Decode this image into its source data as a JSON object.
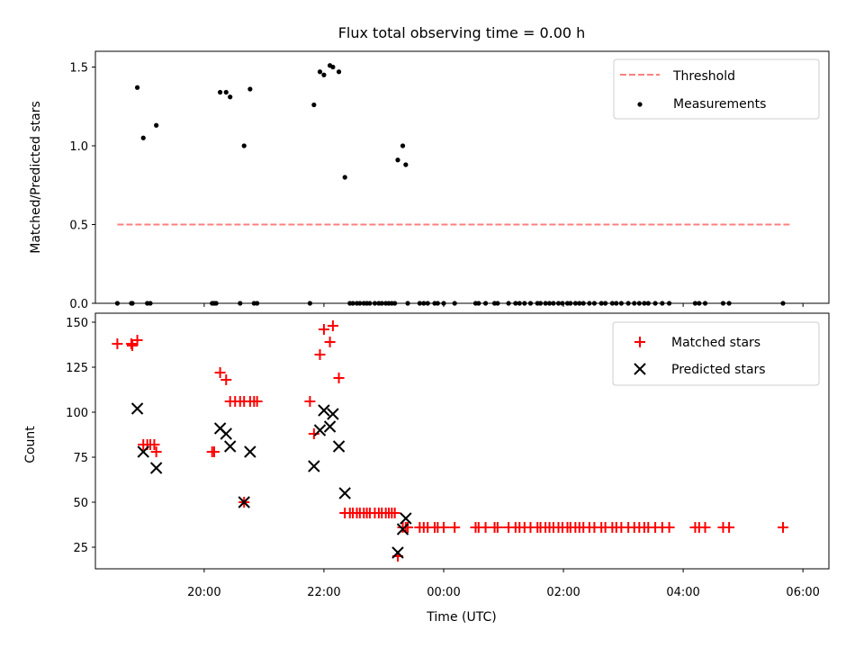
{
  "title": "Flux total observing time = 0.00 h",
  "xlabel": "Time (UTC)",
  "x_ticks": [
    "20:00",
    "22:00",
    "00:00",
    "02:00",
    "04:00",
    "06:00"
  ],
  "colors": {
    "threshold": "#ff7f7f",
    "measurement": "#000000",
    "matched": "#ff0000",
    "predicted": "#000000"
  },
  "chart_data": [
    {
      "type": "scatter",
      "ylabel": "Matched/Predicted stars",
      "xlim": [
        "18:11",
        "06:26"
      ],
      "ylim": [
        0,
        1.6
      ],
      "y_ticks": [
        "0.0",
        "0.5",
        "1.0",
        "1.5"
      ],
      "legend": {
        "placement": "upper right",
        "entries": [
          "Threshold",
          "Measurements"
        ]
      },
      "threshold": {
        "name": "Threshold",
        "y": 0.5,
        "x_range": [
          "18:33",
          "05:48"
        ]
      },
      "measurements": {
        "name": "Measurements",
        "points": [
          [
            "18:33",
            0
          ],
          [
            "18:47",
            0
          ],
          [
            "18:48",
            0
          ],
          [
            "18:53",
            1.37
          ],
          [
            "18:59",
            1.05
          ],
          [
            "19:03",
            0
          ],
          [
            "19:06",
            0
          ],
          [
            "19:12",
            1.13
          ],
          [
            "20:08",
            0
          ],
          [
            "20:10",
            0
          ],
          [
            "20:12",
            0
          ],
          [
            "20:16",
            1.34
          ],
          [
            "20:22",
            1.34
          ],
          [
            "20:26",
            1.31
          ],
          [
            "20:36",
            0
          ],
          [
            "20:40",
            1.0
          ],
          [
            "20:46",
            1.36
          ],
          [
            "20:50",
            0
          ],
          [
            "20:53",
            0
          ],
          [
            "21:46",
            0
          ],
          [
            "21:50",
            1.26
          ],
          [
            "21:56",
            1.47
          ],
          [
            "22:00",
            1.45
          ],
          [
            "22:06",
            1.51
          ],
          [
            "22:09",
            1.5
          ],
          [
            "22:15",
            1.47
          ],
          [
            "22:21",
            0.8
          ],
          [
            "22:26",
            0
          ],
          [
            "22:29",
            0
          ],
          [
            "22:33",
            0
          ],
          [
            "22:36",
            0
          ],
          [
            "22:40",
            0
          ],
          [
            "22:43",
            0
          ],
          [
            "22:46",
            0
          ],
          [
            "22:51",
            0
          ],
          [
            "22:55",
            0
          ],
          [
            "22:58",
            0
          ],
          [
            "23:02",
            0
          ],
          [
            "23:05",
            0
          ],
          [
            "23:08",
            0
          ],
          [
            "23:11",
            0
          ],
          [
            "23:14",
            0.91
          ],
          [
            "23:19",
            1.0
          ],
          [
            "23:22",
            0.88
          ],
          [
            "23:24",
            0
          ],
          [
            "23:36",
            0
          ],
          [
            "23:40",
            0
          ],
          [
            "23:44",
            0
          ],
          [
            "23:51",
            0
          ],
          [
            "23:54",
            0
          ],
          [
            "24:00",
            0
          ],
          [
            "24:11",
            0
          ],
          [
            "24:32",
            0
          ],
          [
            "24:35",
            0
          ],
          [
            "24:42",
            0
          ],
          [
            "24:51",
            0
          ],
          [
            "24:54",
            0
          ],
          [
            "25:05",
            0
          ],
          [
            "25:12",
            0
          ],
          [
            "25:16",
            0
          ],
          [
            "25:21",
            0
          ],
          [
            "25:27",
            0
          ],
          [
            "25:34",
            0
          ],
          [
            "25:37",
            0
          ],
          [
            "25:42",
            0
          ],
          [
            "25:46",
            0
          ],
          [
            "25:50",
            0
          ],
          [
            "25:55",
            0
          ],
          [
            "25:59",
            0
          ],
          [
            "26:04",
            0
          ],
          [
            "26:07",
            0
          ],
          [
            "26:12",
            0
          ],
          [
            "26:16",
            0
          ],
          [
            "26:20",
            0
          ],
          [
            "26:26",
            0
          ],
          [
            "26:31",
            0
          ],
          [
            "26:38",
            0
          ],
          [
            "26:42",
            0
          ],
          [
            "26:49",
            0
          ],
          [
            "26:53",
            0
          ],
          [
            "26:58",
            0
          ],
          [
            "27:05",
            0
          ],
          [
            "27:11",
            0
          ],
          [
            "27:16",
            0
          ],
          [
            "27:21",
            0
          ],
          [
            "27:25",
            0
          ],
          [
            "27:32",
            0
          ],
          [
            "27:39",
            0
          ],
          [
            "27:46",
            0
          ],
          [
            "28:12",
            0
          ],
          [
            "28:16",
            0
          ],
          [
            "28:22",
            0
          ],
          [
            "28:40",
            0
          ],
          [
            "28:46",
            0
          ],
          [
            "29:40",
            0
          ]
        ]
      }
    },
    {
      "type": "scatter",
      "ylabel": "Count",
      "xlim": [
        "18:11",
        "06:26"
      ],
      "ylim": [
        13,
        155
      ],
      "y_ticks": [
        "25",
        "50",
        "75",
        "100",
        "125",
        "150"
      ],
      "legend": {
        "placement": "upper right",
        "entries": [
          "Matched stars",
          "Predicted stars"
        ]
      },
      "matched": {
        "name": "Matched stars",
        "points": [
          [
            "18:33",
            138
          ],
          [
            "18:47",
            138
          ],
          [
            "18:48",
            137
          ],
          [
            "18:53",
            140
          ],
          [
            "18:59",
            82
          ],
          [
            "19:03",
            82
          ],
          [
            "19:06",
            82
          ],
          [
            "19:10",
            82
          ],
          [
            "19:12",
            78
          ],
          [
            "20:08",
            78
          ],
          [
            "20:10",
            78
          ],
          [
            "20:16",
            122
          ],
          [
            "20:22",
            118
          ],
          [
            "20:26",
            106
          ],
          [
            "20:31",
            106
          ],
          [
            "20:36",
            106
          ],
          [
            "20:40",
            106
          ],
          [
            "20:46",
            106
          ],
          [
            "20:50",
            106
          ],
          [
            "20:53",
            106
          ],
          [
            "20:40",
            50
          ],
          [
            "21:46",
            106
          ],
          [
            "21:50",
            88
          ],
          [
            "21:56",
            132
          ],
          [
            "22:00",
            146
          ],
          [
            "22:06",
            139
          ],
          [
            "22:09",
            148
          ],
          [
            "22:15",
            119
          ],
          [
            "22:21",
            44
          ],
          [
            "22:26",
            44
          ],
          [
            "22:29",
            44
          ],
          [
            "22:33",
            44
          ],
          [
            "22:36",
            44
          ],
          [
            "22:40",
            44
          ],
          [
            "22:43",
            44
          ],
          [
            "22:46",
            44
          ],
          [
            "22:51",
            44
          ],
          [
            "22:55",
            44
          ],
          [
            "22:58",
            44
          ],
          [
            "23:02",
            44
          ],
          [
            "23:05",
            44
          ],
          [
            "23:08",
            44
          ],
          [
            "23:11",
            44
          ],
          [
            "23:14",
            20
          ],
          [
            "23:19",
            36
          ],
          [
            "23:22",
            36
          ],
          [
            "23:24",
            36
          ],
          [
            "23:36",
            36
          ],
          [
            "23:40",
            36
          ],
          [
            "23:44",
            36
          ],
          [
            "23:51",
            36
          ],
          [
            "23:54",
            36
          ],
          [
            "24:00",
            36
          ],
          [
            "24:11",
            36
          ],
          [
            "24:32",
            36
          ],
          [
            "24:35",
            36
          ],
          [
            "24:42",
            36
          ],
          [
            "24:51",
            36
          ],
          [
            "24:54",
            36
          ],
          [
            "25:05",
            36
          ],
          [
            "25:12",
            36
          ],
          [
            "25:16",
            36
          ],
          [
            "25:21",
            36
          ],
          [
            "25:27",
            36
          ],
          [
            "25:34",
            36
          ],
          [
            "25:37",
            36
          ],
          [
            "25:42",
            36
          ],
          [
            "25:46",
            36
          ],
          [
            "25:50",
            36
          ],
          [
            "25:55",
            36
          ],
          [
            "25:59",
            36
          ],
          [
            "26:04",
            36
          ],
          [
            "26:07",
            36
          ],
          [
            "26:12",
            36
          ],
          [
            "26:16",
            36
          ],
          [
            "26:20",
            36
          ],
          [
            "26:26",
            36
          ],
          [
            "26:31",
            36
          ],
          [
            "26:38",
            36
          ],
          [
            "26:42",
            36
          ],
          [
            "26:49",
            36
          ],
          [
            "26:53",
            36
          ],
          [
            "26:58",
            36
          ],
          [
            "27:05",
            36
          ],
          [
            "27:11",
            36
          ],
          [
            "27:16",
            36
          ],
          [
            "27:21",
            36
          ],
          [
            "27:25",
            36
          ],
          [
            "27:32",
            36
          ],
          [
            "27:39",
            36
          ],
          [
            "27:46",
            36
          ],
          [
            "28:12",
            36
          ],
          [
            "28:16",
            36
          ],
          [
            "28:22",
            36
          ],
          [
            "28:40",
            36
          ],
          [
            "28:46",
            36
          ],
          [
            "29:40",
            36
          ]
        ]
      },
      "predicted": {
        "name": "Predicted stars",
        "points": [
          [
            "18:53",
            102
          ],
          [
            "18:59",
            78
          ],
          [
            "19:12",
            69
          ],
          [
            "20:16",
            91
          ],
          [
            "20:22",
            88
          ],
          [
            "20:26",
            81
          ],
          [
            "20:40",
            50
          ],
          [
            "20:46",
            78
          ],
          [
            "21:50",
            70
          ],
          [
            "21:56",
            90
          ],
          [
            "22:00",
            101
          ],
          [
            "22:06",
            92
          ],
          [
            "22:09",
            99
          ],
          [
            "22:15",
            81
          ],
          [
            "22:21",
            55
          ],
          [
            "23:14",
            22
          ],
          [
            "23:19",
            35
          ],
          [
            "23:22",
            41
          ]
        ]
      }
    }
  ]
}
